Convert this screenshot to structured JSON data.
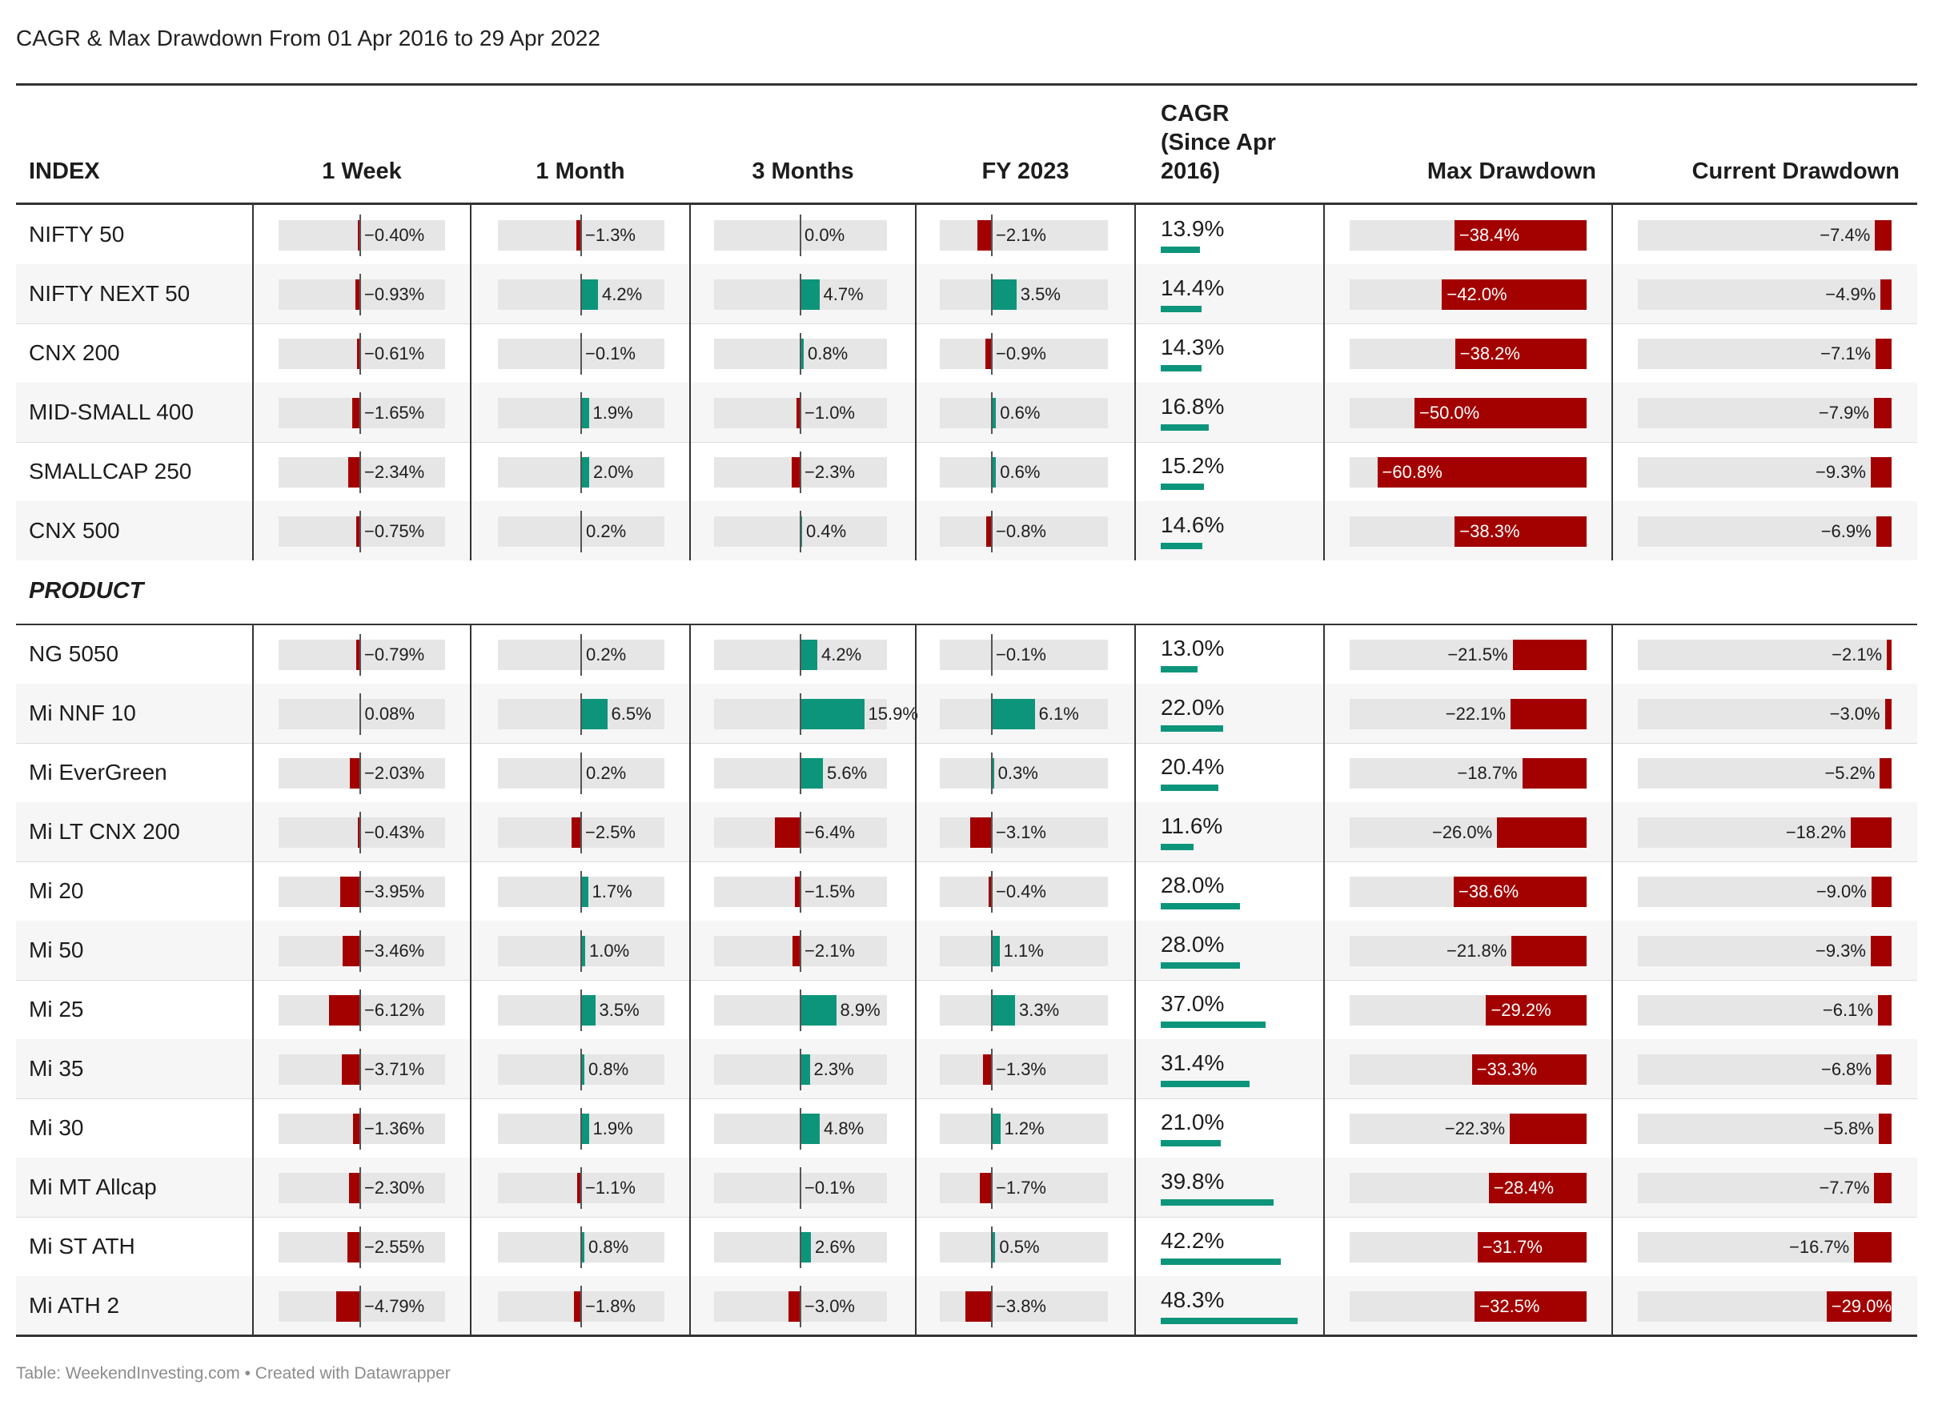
{
  "title": "CAGR & Max Drawdown From 01 Apr 2016 to 29 Apr 2022",
  "footer": "Table: WeekendInvesting.com • Created with Datawrapper",
  "colors": {
    "positive": "#0d957b",
    "negative": "#a30000",
    "track": "#e6e6e6"
  },
  "chart_data": {
    "type": "table",
    "columns": [
      "INDEX",
      "1 Week",
      "1 Month",
      "3 Months",
      "FY 2023",
      "CAGR (Since Apr 2016)",
      "Max Drawdown",
      "Current Drawdown"
    ],
    "value_labels": {
      "week": [
        "-0.40%",
        "-0.93%",
        "-0.61%",
        "-1.65%",
        "-2.34%",
        "-0.75%",
        "-0.79%",
        "0.08%",
        "-2.03%",
        "-0.43%",
        "-3.95%",
        "-3.46%",
        "-6.12%",
        "-3.71%",
        "-1.36%",
        "-2.30%",
        "-2.55%",
        "-4.79%"
      ]
    },
    "groups": [
      {
        "name": "",
        "rows": [
          {
            "name": "NIFTY 50",
            "week": -0.4,
            "month": -1.3,
            "months3": 0.0,
            "fy2023": -2.1,
            "cagr": 13.9,
            "max_dd": -38.4,
            "cur_dd": -7.4
          },
          {
            "name": "NIFTY NEXT 50",
            "week": -0.93,
            "month": 4.2,
            "months3": 4.7,
            "fy2023": 3.5,
            "cagr": 14.4,
            "max_dd": -42.0,
            "cur_dd": -4.9
          },
          {
            "name": "CNX 200",
            "week": -0.61,
            "month": -0.1,
            "months3": 0.8,
            "fy2023": -0.9,
            "cagr": 14.3,
            "max_dd": -38.2,
            "cur_dd": -7.1
          },
          {
            "name": "MID-SMALL 400",
            "week": -1.65,
            "month": 1.9,
            "months3": -1.0,
            "fy2023": 0.6,
            "cagr": 16.8,
            "max_dd": -50.0,
            "cur_dd": -7.9
          },
          {
            "name": "SMALLCAP 250",
            "week": -2.34,
            "month": 2.0,
            "months3": -2.3,
            "fy2023": 0.6,
            "cagr": 15.2,
            "max_dd": -60.8,
            "cur_dd": -9.3
          },
          {
            "name": "CNX 500",
            "week": -0.75,
            "month": 0.2,
            "months3": 0.4,
            "fy2023": -0.8,
            "cagr": 14.6,
            "max_dd": -38.3,
            "cur_dd": -6.9
          }
        ]
      },
      {
        "name": "PRODUCT",
        "rows": [
          {
            "name": "NG 5050",
            "week": -0.79,
            "month": 0.2,
            "months3": 4.2,
            "fy2023": -0.1,
            "cagr": 13.0,
            "max_dd": -21.5,
            "cur_dd": -2.1
          },
          {
            "name": "Mi NNF 10",
            "week": 0.08,
            "month": 6.5,
            "months3": 15.9,
            "fy2023": 6.1,
            "cagr": 22.0,
            "max_dd": -22.1,
            "cur_dd": -3.0
          },
          {
            "name": "Mi EverGreen",
            "week": -2.03,
            "month": 0.2,
            "months3": 5.6,
            "fy2023": 0.3,
            "cagr": 20.4,
            "max_dd": -18.7,
            "cur_dd": -5.2
          },
          {
            "name": "Mi LT CNX 200",
            "week": -0.43,
            "month": -2.5,
            "months3": -6.4,
            "fy2023": -3.1,
            "cagr": 11.6,
            "max_dd": -26.0,
            "cur_dd": -18.2
          },
          {
            "name": "Mi 20",
            "week": -3.95,
            "month": 1.7,
            "months3": -1.5,
            "fy2023": -0.4,
            "cagr": 28.0,
            "max_dd": -38.6,
            "cur_dd": -9.0
          },
          {
            "name": "Mi 50",
            "week": -3.46,
            "month": 1.0,
            "months3": -2.1,
            "fy2023": 1.1,
            "cagr": 28.0,
            "max_dd": -21.8,
            "cur_dd": -9.3
          },
          {
            "name": "Mi 25",
            "week": -6.12,
            "month": 3.5,
            "months3": 8.9,
            "fy2023": 3.3,
            "cagr": 37.0,
            "max_dd": -29.2,
            "cur_dd": -6.1
          },
          {
            "name": "Mi 35",
            "week": -3.71,
            "month": 0.8,
            "months3": 2.3,
            "fy2023": -1.3,
            "cagr": 31.4,
            "max_dd": -33.3,
            "cur_dd": -6.8
          },
          {
            "name": "Mi 30",
            "week": -1.36,
            "month": 1.9,
            "months3": 4.8,
            "fy2023": 1.2,
            "cagr": 21.0,
            "max_dd": -22.3,
            "cur_dd": -5.8
          },
          {
            "name": "Mi MT Allcap",
            "week": -2.3,
            "month": -1.1,
            "months3": -0.1,
            "fy2023": -1.7,
            "cagr": 39.8,
            "max_dd": -28.4,
            "cur_dd": -7.7
          },
          {
            "name": "Mi ST ATH",
            "week": -2.55,
            "month": 0.8,
            "months3": 2.6,
            "fy2023": 0.5,
            "cagr": 42.2,
            "max_dd": -31.7,
            "cur_dd": -16.7
          },
          {
            "name": "Mi ATH 2",
            "week": -4.79,
            "month": -1.8,
            "months3": -3.0,
            "fy2023": -3.8,
            "cagr": 48.3,
            "max_dd": -32.5,
            "cur_dd": -29.0
          }
        ]
      }
    ]
  }
}
